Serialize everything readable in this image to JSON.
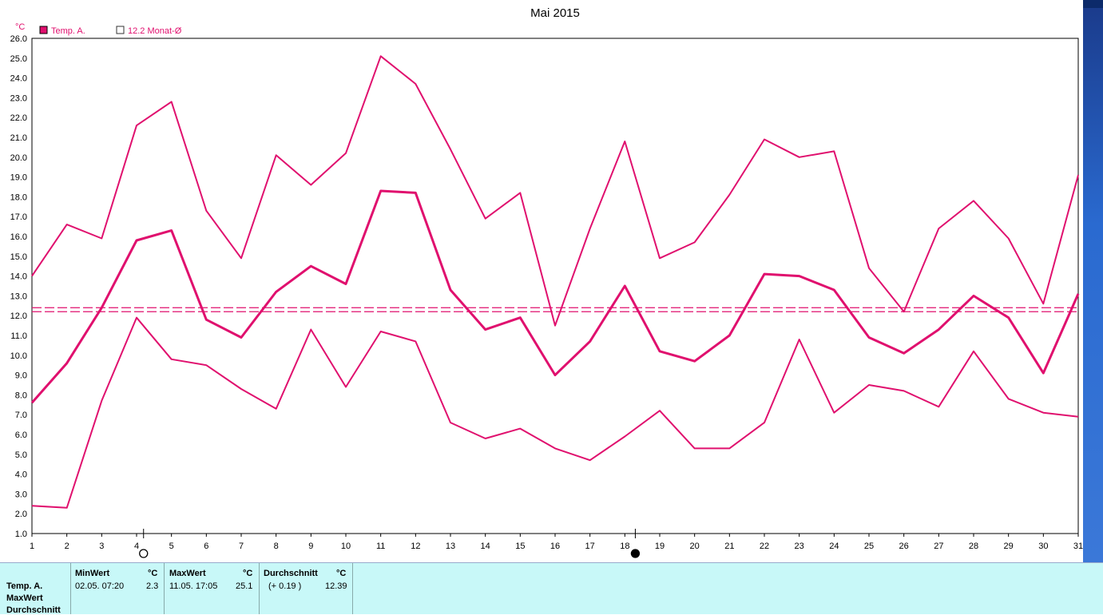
{
  "chart_data": {
    "type": "line",
    "title": "Mai 2015",
    "y_unit": "°C",
    "ylim": [
      1.0,
      26.0
    ],
    "y_ticks": [
      "1.0",
      "2.0",
      "3.0",
      "4.0",
      "5.0",
      "6.0",
      "7.0",
      "8.0",
      "9.0",
      "10.0",
      "11.0",
      "12.0",
      "13.0",
      "14.0",
      "15.0",
      "16.0",
      "17.0",
      "18.0",
      "19.0",
      "20.0",
      "21.0",
      "22.0",
      "23.0",
      "24.0",
      "25.0",
      "26.0"
    ],
    "x": [
      1,
      2,
      3,
      4,
      5,
      6,
      7,
      8,
      9,
      10,
      11,
      12,
      13,
      14,
      15,
      16,
      17,
      18,
      19,
      20,
      21,
      22,
      23,
      24,
      25,
      26,
      27,
      28,
      29,
      30,
      31
    ],
    "x_ticks": [
      "1",
      "2",
      "3",
      "4",
      "5",
      "6",
      "7",
      "8",
      "9",
      "10",
      "11",
      "12",
      "13",
      "14",
      "15",
      "16",
      "17",
      "18",
      "19",
      "20",
      "21",
      "22",
      "23",
      "24",
      "25",
      "26",
      "27",
      "28",
      "29",
      "30",
      "31"
    ],
    "grid": true,
    "legend": [
      {
        "label": "Temp. A.",
        "filled": true
      },
      {
        "label": "12.2 Monat-Ø",
        "filled": false
      }
    ],
    "series": [
      {
        "name": "Temp. A.",
        "role": "max",
        "values": [
          14.0,
          16.6,
          15.9,
          21.6,
          22.8,
          17.3,
          14.9,
          20.1,
          18.6,
          20.2,
          25.1,
          23.7,
          20.4,
          16.9,
          18.2,
          11.5,
          16.4,
          20.8,
          14.9,
          15.7,
          18.1,
          20.9,
          20.0,
          20.3,
          14.4,
          12.2,
          16.4,
          17.8,
          15.9,
          12.6,
          19.1
        ]
      },
      {
        "name": "Temp. A.",
        "role": "mean",
        "values": [
          7.6,
          9.6,
          12.4,
          15.8,
          16.3,
          11.8,
          10.9,
          13.2,
          14.5,
          13.6,
          18.3,
          18.2,
          13.3,
          11.3,
          11.9,
          9.0,
          10.7,
          13.5,
          10.2,
          9.7,
          11.0,
          14.1,
          14.0,
          13.3,
          10.9,
          10.1,
          11.3,
          13.0,
          11.9,
          9.1,
          13.1
        ]
      },
      {
        "name": "Temp. A.",
        "role": "min",
        "values": [
          2.4,
          2.3,
          7.7,
          11.9,
          9.8,
          9.5,
          8.3,
          7.3,
          11.3,
          8.4,
          11.2,
          10.7,
          6.6,
          5.8,
          6.3,
          5.3,
          4.7,
          5.9,
          7.2,
          5.3,
          5.3,
          6.6,
          10.8,
          7.1,
          8.5,
          8.2,
          7.4,
          10.2,
          7.8,
          7.1,
          6.9
        ]
      }
    ],
    "reference_lines": [
      12.2,
      12.4
    ],
    "moon_phases": [
      {
        "day": 4.2,
        "phase": "full-moon"
      },
      {
        "day": 18.3,
        "phase": "new-moon"
      }
    ],
    "colors": {
      "series": "#e0106e",
      "grid": "#808080",
      "axis": "#000000",
      "panel": "#c8f8f8"
    }
  },
  "stats": {
    "row_labels": [
      "Temp. A.",
      "MaxWert",
      "Durchschnitt"
    ],
    "min": {
      "header": "MinWert",
      "unit": "°C",
      "date": "02.05.  07:20",
      "value": "2.3"
    },
    "max": {
      "header": "MaxWert",
      "unit": "°C",
      "date": "11.05.  17:05",
      "value": "25.1"
    },
    "avg": {
      "header": "Durchschnitt",
      "unit": "°C",
      "delta": "(+ 0.19 )",
      "value": "12.39"
    }
  }
}
